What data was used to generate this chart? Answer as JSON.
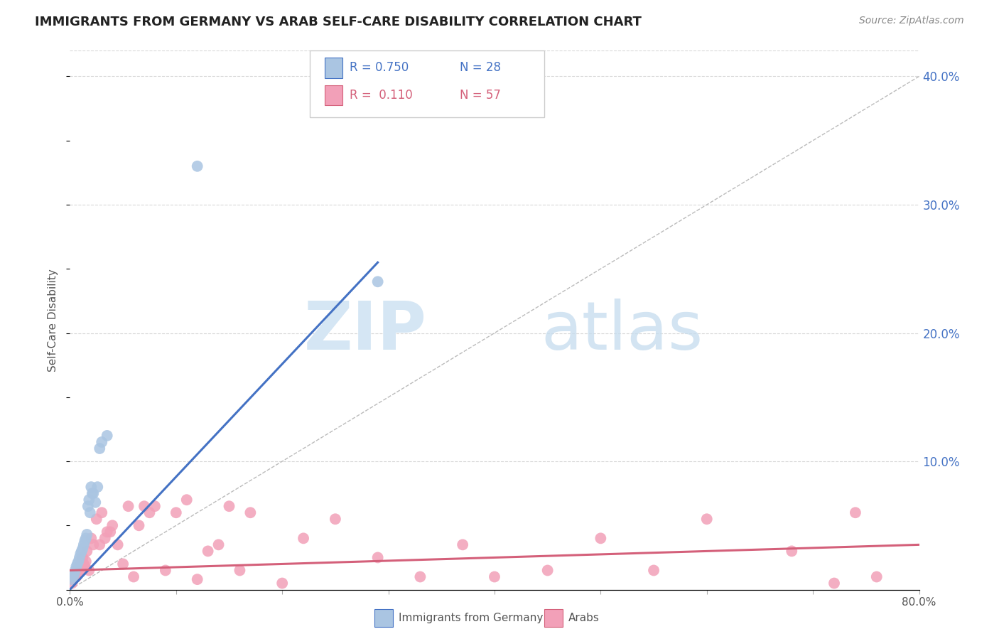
{
  "title": "IMMIGRANTS FROM GERMANY VS ARAB SELF-CARE DISABILITY CORRELATION CHART",
  "source": "Source: ZipAtlas.com",
  "ylabel": "Self-Care Disability",
  "xlim": [
    0,
    0.8
  ],
  "ylim": [
    0,
    0.42
  ],
  "yticks_right": [
    0.0,
    0.1,
    0.2,
    0.3,
    0.4
  ],
  "ytick_labels_right": [
    "",
    "10.0%",
    "20.0%",
    "30.0%",
    "40.0%"
  ],
  "legend_r1": "R = 0.750",
  "legend_n1": "N = 28",
  "legend_r2": "R =  0.110",
  "legend_n2": "N = 57",
  "legend_label1": "Immigrants from Germany",
  "legend_label2": "Arabs",
  "color_blue": "#aac5e2",
  "color_blue_line": "#4472c4",
  "color_blue_text": "#4472c4",
  "color_pink": "#f2a0b8",
  "color_pink_line": "#d4607a",
  "color_pink_text": "#d4607a",
  "color_ref_line": "#bbbbbb",
  "blue_points_x": [
    0.002,
    0.003,
    0.004,
    0.005,
    0.006,
    0.007,
    0.008,
    0.009,
    0.01,
    0.011,
    0.012,
    0.013,
    0.014,
    0.015,
    0.016,
    0.017,
    0.018,
    0.019,
    0.02,
    0.021,
    0.022,
    0.024,
    0.026,
    0.028,
    0.03,
    0.035,
    0.12,
    0.29
  ],
  "blue_points_y": [
    0.008,
    0.01,
    0.012,
    0.015,
    0.018,
    0.02,
    0.022,
    0.025,
    0.028,
    0.03,
    0.032,
    0.035,
    0.038,
    0.04,
    0.043,
    0.065,
    0.07,
    0.06,
    0.08,
    0.075,
    0.075,
    0.068,
    0.08,
    0.11,
    0.115,
    0.12,
    0.33,
    0.24
  ],
  "pink_points_x": [
    0.002,
    0.003,
    0.004,
    0.005,
    0.006,
    0.007,
    0.008,
    0.009,
    0.01,
    0.011,
    0.012,
    0.013,
    0.014,
    0.015,
    0.016,
    0.018,
    0.02,
    0.022,
    0.025,
    0.028,
    0.03,
    0.033,
    0.035,
    0.038,
    0.04,
    0.045,
    0.05,
    0.055,
    0.06,
    0.065,
    0.07,
    0.075,
    0.08,
    0.09,
    0.1,
    0.11,
    0.12,
    0.13,
    0.14,
    0.15,
    0.16,
    0.17,
    0.2,
    0.22,
    0.25,
    0.29,
    0.33,
    0.37,
    0.4,
    0.45,
    0.5,
    0.55,
    0.6,
    0.68,
    0.72,
    0.74,
    0.76
  ],
  "pink_points_y": [
    0.005,
    0.008,
    0.01,
    0.012,
    0.01,
    0.015,
    0.013,
    0.018,
    0.02,
    0.015,
    0.025,
    0.02,
    0.018,
    0.022,
    0.03,
    0.015,
    0.04,
    0.035,
    0.055,
    0.035,
    0.06,
    0.04,
    0.045,
    0.045,
    0.05,
    0.035,
    0.02,
    0.065,
    0.01,
    0.05,
    0.065,
    0.06,
    0.065,
    0.015,
    0.06,
    0.07,
    0.008,
    0.03,
    0.035,
    0.065,
    0.015,
    0.06,
    0.005,
    0.04,
    0.055,
    0.025,
    0.01,
    0.035,
    0.01,
    0.015,
    0.04,
    0.015,
    0.055,
    0.03,
    0.005,
    0.06,
    0.01
  ],
  "blue_trend_x": [
    0.0,
    0.29
  ],
  "blue_trend_y": [
    0.0,
    0.255
  ],
  "pink_trend_x": [
    0.0,
    0.8
  ],
  "pink_trend_y": [
    0.015,
    0.035
  ],
  "ref_line_x": [
    0.0,
    0.84
  ],
  "ref_line_y": [
    0.0,
    0.42
  ]
}
